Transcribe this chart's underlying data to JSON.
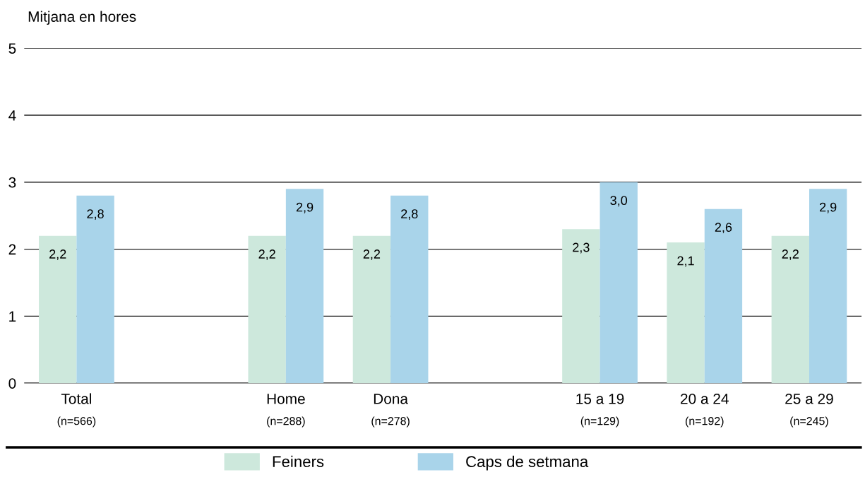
{
  "chart_data": {
    "type": "bar",
    "ylabel": "Mitjana en hores",
    "categories": [
      "Total\n(n=566)",
      null,
      "Home\n(n=288)",
      "Dona\n(n=278)",
      null,
      "15 a 19\n(n=129)",
      "20 a 24\n(n=192)",
      "25 a 29\n(n=245)"
    ],
    "series": [
      {
        "name": "Feiners",
        "color": "#cde8dc",
        "values": [
          2.2,
          null,
          2.2,
          2.2,
          null,
          2.3,
          2.1,
          2.2
        ],
        "value_labels": [
          "2,2",
          null,
          "2,2",
          "2,2",
          null,
          "2,3",
          "2,1",
          "2,2"
        ]
      },
      {
        "name": "Caps de setmana",
        "color": "#a9d4ea",
        "values": [
          2.8,
          null,
          2.9,
          2.8,
          null,
          3.0,
          2.6,
          2.9
        ],
        "value_labels": [
          "2,8",
          null,
          "2,9",
          "2,8",
          null,
          "3,0",
          "2,6",
          "2,9"
        ]
      }
    ],
    "ylim": [
      0,
      5
    ],
    "yticks": [
      0,
      1,
      2,
      3,
      4,
      5
    ],
    "grid": "y",
    "legend": "bottom"
  }
}
